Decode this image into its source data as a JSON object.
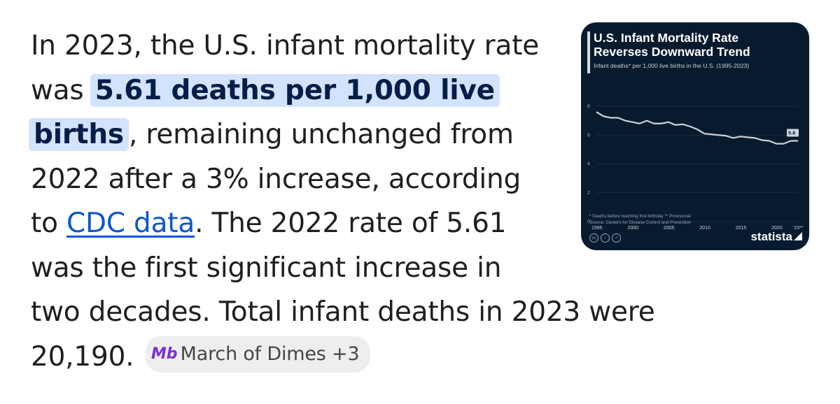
{
  "answer": {
    "line1": "In 2023, the U.S. infant mortality rate",
    "line2_pre": "was",
    "highlight_a": "5.61 deaths per 1,000 live",
    "highlight_b": "births",
    "line3_post": ", remaining unchanged from",
    "line4": "2022 after a 3% increase, according",
    "line5_pre": "to ",
    "link": "CDC data",
    "line5_post": ". The 2022 rate of 5.61",
    "line6": "was the first significant increase in",
    "line7": "two decades. Total infant deaths in 2023 were",
    "line8": "20,190."
  },
  "source_chip": {
    "icon": "march-of-dimes-logo",
    "icon_text": "Mb",
    "label": "March of Dimes +3"
  },
  "thumbnail": {
    "title_line1": "U.S. Infant Mortality Rate",
    "title_line2": "Reverses Downward Trend",
    "subtitle": "Infant deaths* per 1,000 live births in the U.S. (1995-2023)",
    "note": "* Deaths before reaching first birthday   ** Provisional",
    "source": "Source: Centers for Disease Control and Prevention",
    "brand": "statista",
    "end_label": "5.6",
    "chart_data": {
      "type": "line",
      "x": [
        1995,
        1996,
        1997,
        1998,
        1999,
        2000,
        2001,
        2002,
        2003,
        2004,
        2005,
        2006,
        2007,
        2008,
        2009,
        2010,
        2011,
        2012,
        2013,
        2014,
        2015,
        2016,
        2017,
        2018,
        2019,
        2020,
        2021,
        2022,
        2023
      ],
      "values": [
        7.6,
        7.3,
        7.2,
        7.2,
        7.0,
        6.9,
        6.8,
        7.0,
        6.8,
        6.8,
        6.9,
        6.7,
        6.75,
        6.6,
        6.4,
        6.1,
        6.05,
        6.0,
        5.95,
        5.8,
        5.9,
        5.85,
        5.8,
        5.65,
        5.6,
        5.4,
        5.4,
        5.6,
        5.6
      ],
      "yticks": [
        "0",
        "2",
        "4",
        "6",
        "8"
      ],
      "xticks": [
        "1995",
        "2000",
        "2005",
        "2010",
        "2015",
        "2020",
        "'23**"
      ],
      "ylim": [
        0,
        8
      ],
      "xlim": [
        1995,
        2023
      ],
      "grid": true,
      "colors": {
        "line": "#c9d2dc",
        "background": "#081a2e",
        "grid": "#2a3a4e"
      }
    }
  }
}
